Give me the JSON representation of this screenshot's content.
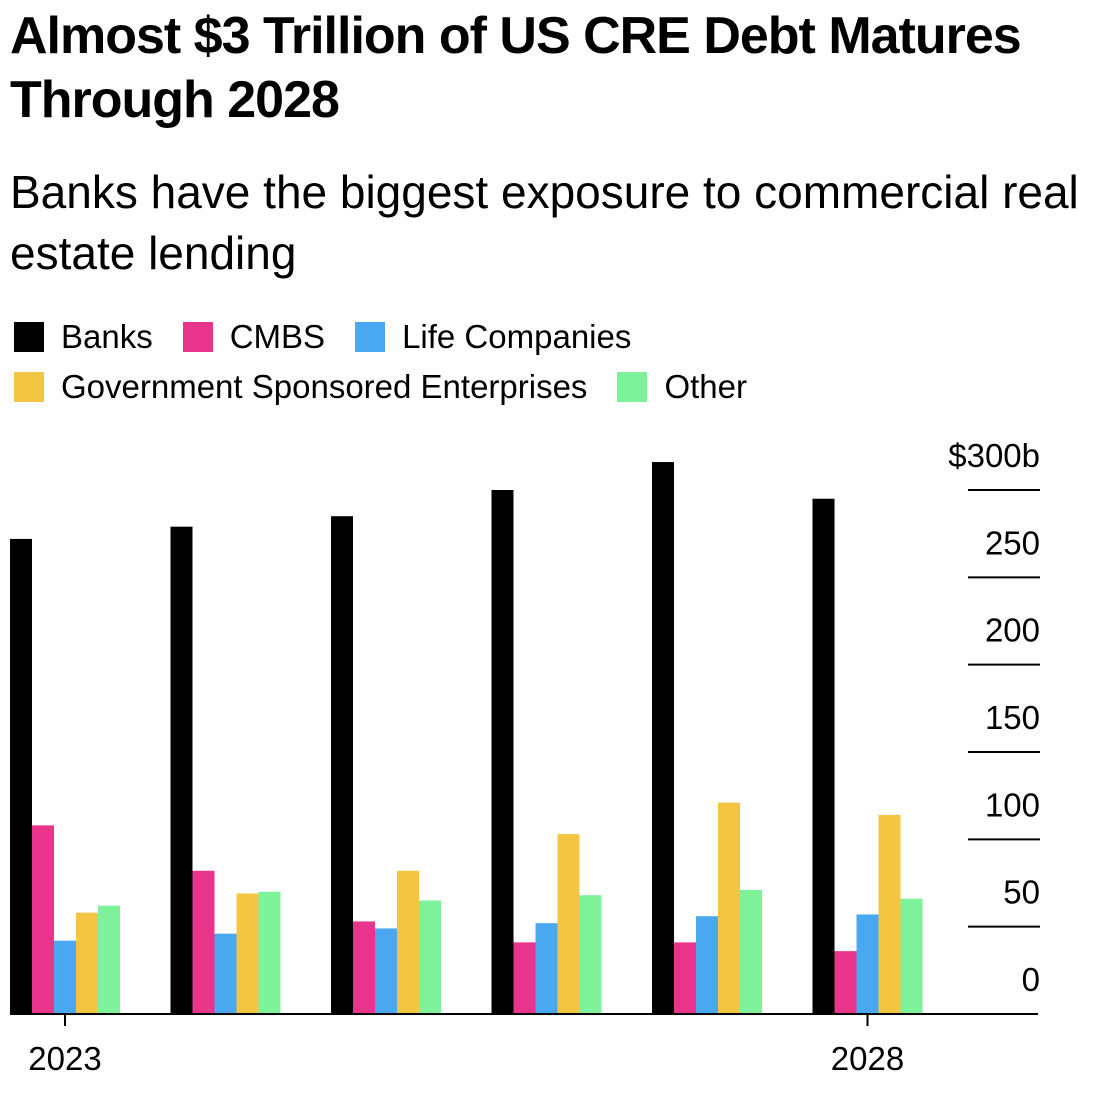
{
  "header": {
    "title": "Almost $3 Trillion of US CRE Debt Matures Through 2028",
    "subtitle": "Banks have the biggest exposure to commercial real estate lending"
  },
  "legend": {
    "row1": [
      {
        "label": "Banks",
        "color": "#000000"
      },
      {
        "label": "CMBS",
        "color": "#e8348b"
      },
      {
        "label": "Life Companies",
        "color": "#4aa8f0"
      }
    ],
    "row2": [
      {
        "label": "Government Sponsored Enterprises",
        "color": "#f4c542"
      },
      {
        "label": "Other",
        "color": "#7ef29a"
      }
    ]
  },
  "chart_data": {
    "type": "bar",
    "categories": [
      "2023",
      "2024",
      "2025",
      "2026",
      "2027",
      "2028"
    ],
    "x_tick_labels": [
      "2023",
      "",
      "",
      "",
      "",
      "2028"
    ],
    "series": [
      {
        "name": "Banks",
        "color": "#000000",
        "values": [
          272,
          279,
          285,
          300,
          316,
          295
        ]
      },
      {
        "name": "CMBS",
        "color": "#e8348b",
        "values": [
          108,
          82,
          53,
          41,
          41,
          36
        ]
      },
      {
        "name": "Life Companies",
        "color": "#4aa8f0",
        "values": [
          42,
          46,
          49,
          52,
          56,
          57
        ]
      },
      {
        "name": "Government Sponsored Enterprises",
        "color": "#f4c542",
        "values": [
          58,
          69,
          82,
          103,
          121,
          114
        ]
      },
      {
        "name": "Other",
        "color": "#7ef29a",
        "values": [
          62,
          70,
          65,
          68,
          71,
          66
        ]
      }
    ],
    "y_ticks": [
      0,
      50,
      100,
      150,
      200,
      250,
      300
    ],
    "y_tick_labels": [
      "0",
      "50",
      "100",
      "150",
      "200",
      "250",
      "$300b"
    ],
    "ylim": [
      0,
      300
    ],
    "y_axis_position": "right",
    "grid": false,
    "legend_position": "top-left"
  }
}
